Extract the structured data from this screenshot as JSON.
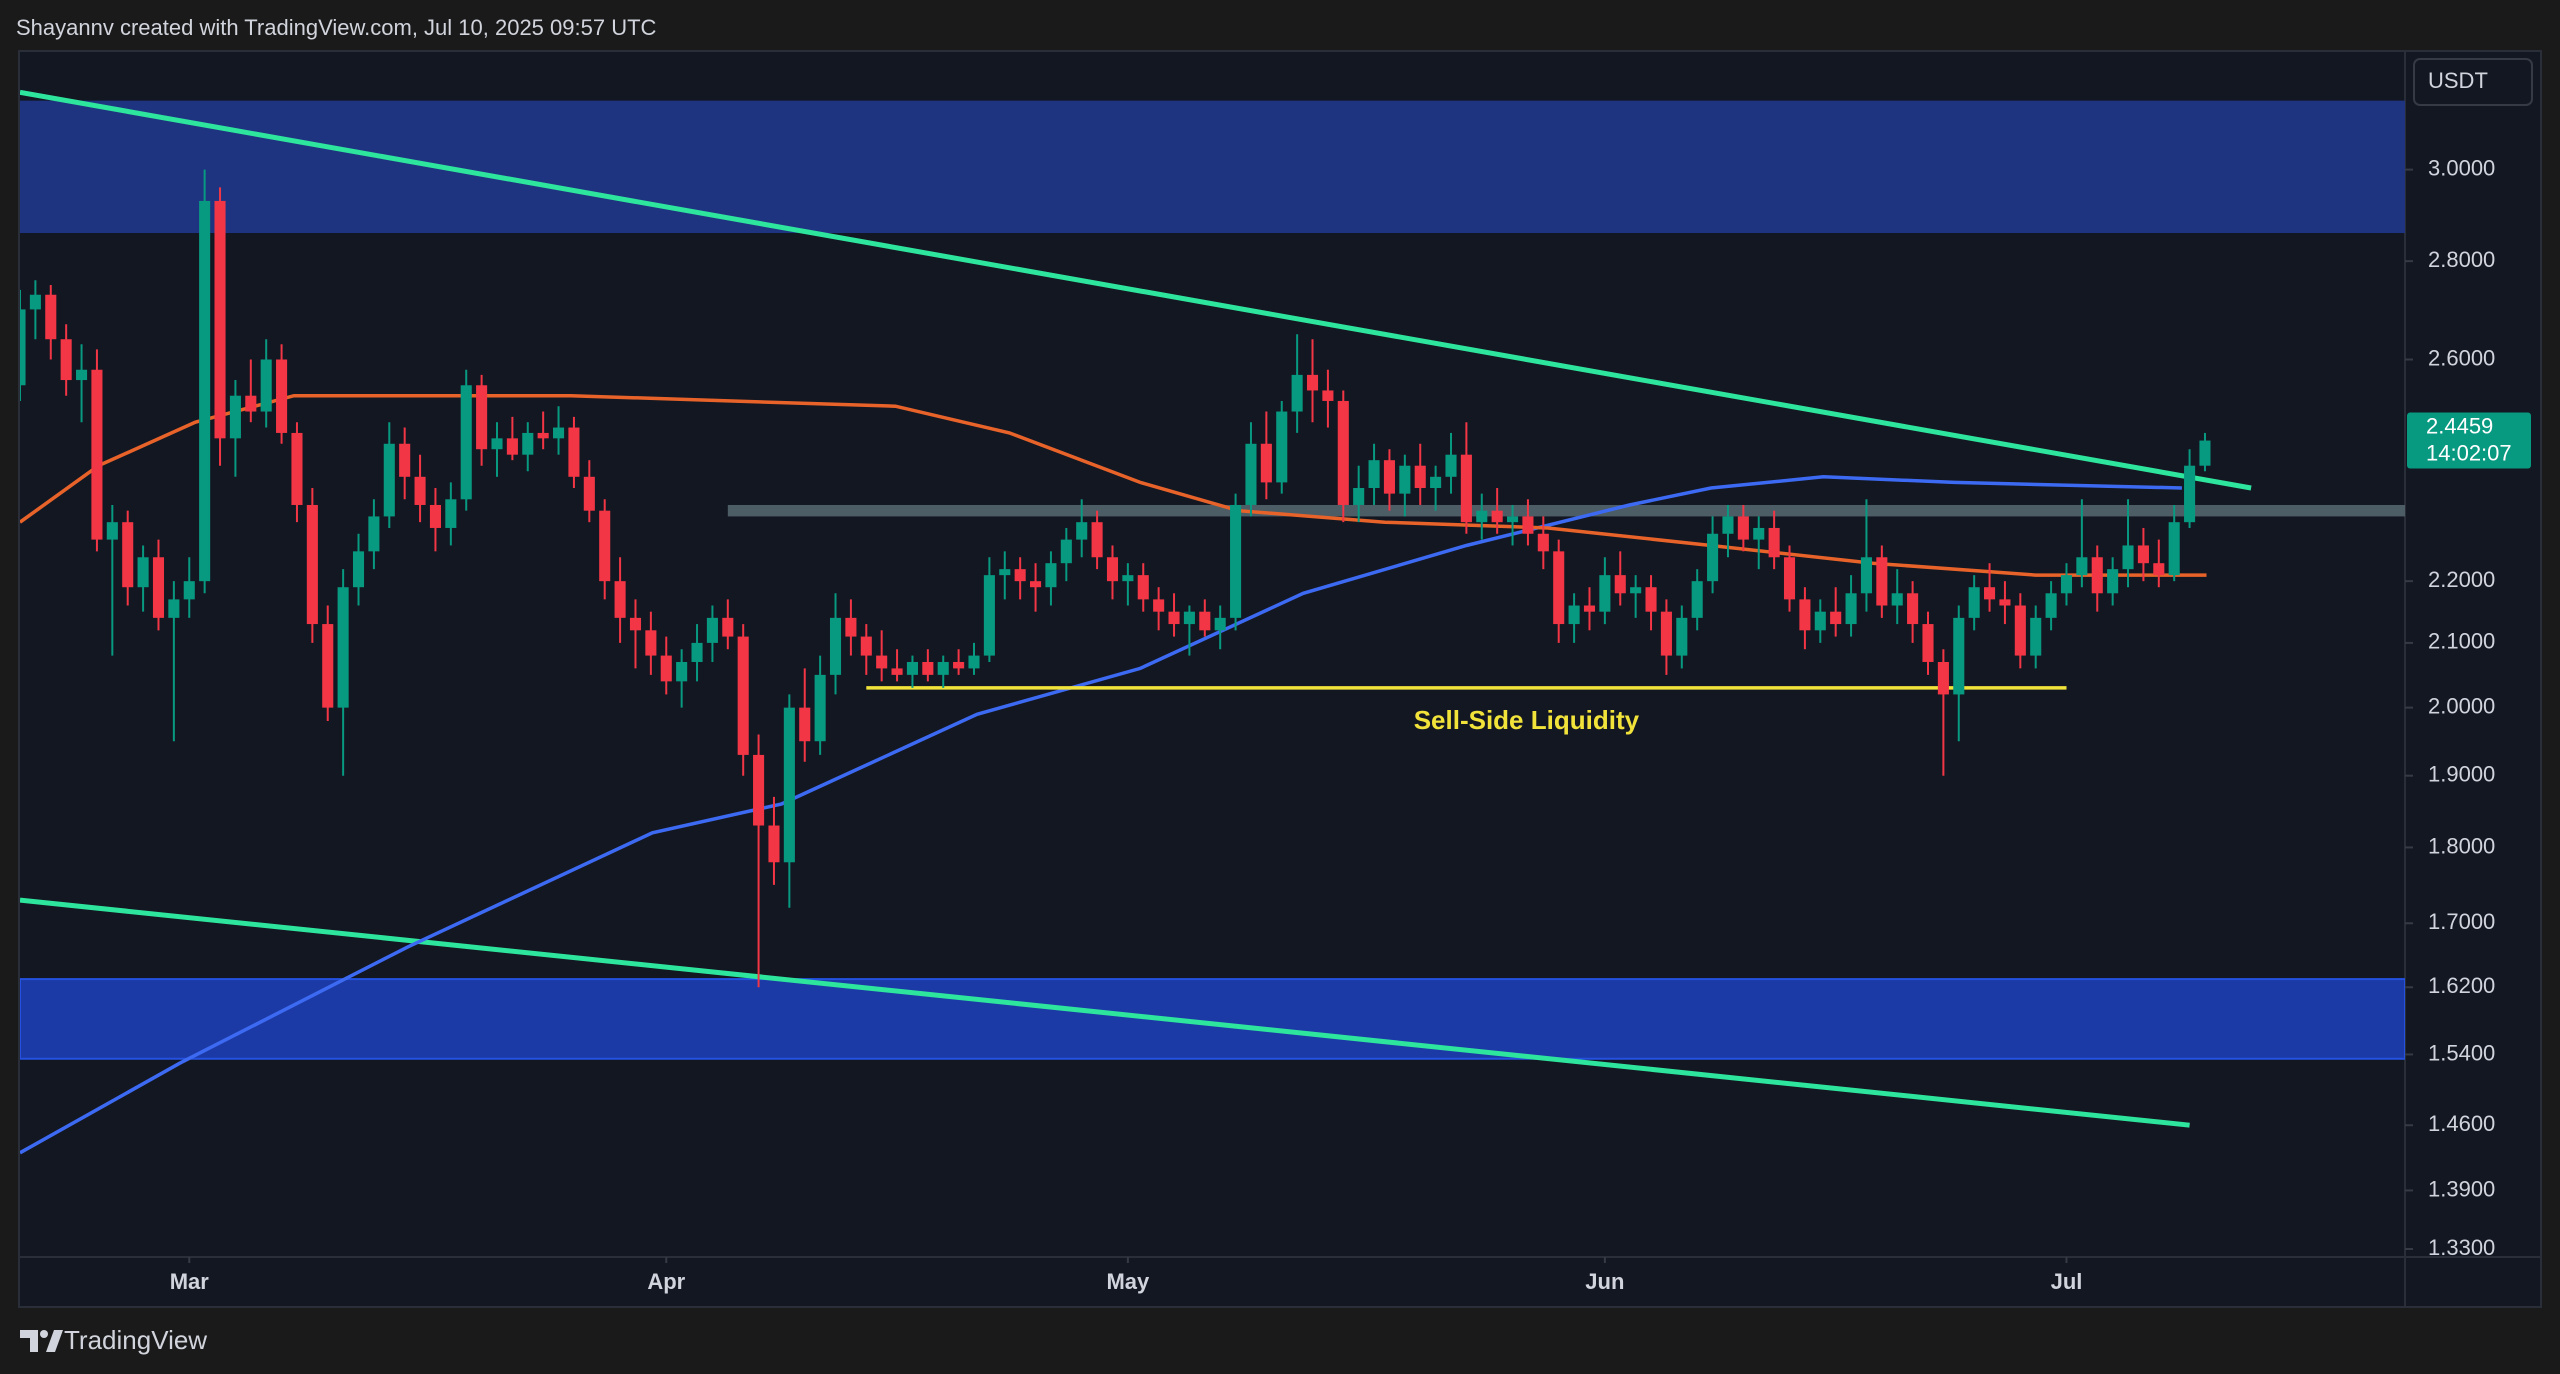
{
  "header": {
    "attribution": "Shayannv created with TradingView.com, Jul 10, 2025 09:57 UTC",
    "currency": "USDT"
  },
  "footer": {
    "brand": "TradingView"
  },
  "chart_data": {
    "type": "candlestick",
    "log_scale": true,
    "xlim": [
      0,
      155
    ],
    "xticks": [
      {
        "value": 11,
        "label": "Mar"
      },
      {
        "value": 42,
        "label": "Apr"
      },
      {
        "value": 72,
        "label": "May"
      },
      {
        "value": 103,
        "label": "Jun"
      },
      {
        "value": 133,
        "label": "Jul"
      }
    ],
    "ylim": [
      1.322,
      3.278
    ],
    "yticks": [
      {
        "value": 3,
        "label": "3.0000"
      },
      {
        "value": 2.8,
        "label": "2.8000"
      },
      {
        "value": 2.6,
        "label": "2.6000"
      },
      {
        "value": 2.2,
        "label": "2.2000"
      },
      {
        "value": 2.1,
        "label": "2.1000"
      },
      {
        "value": 2,
        "label": "2.0000"
      },
      {
        "value": 1.9,
        "label": "1.9000"
      },
      {
        "value": 1.8,
        "label": "1.8000"
      },
      {
        "value": 1.7,
        "label": "1.7000"
      },
      {
        "value": 1.62,
        "label": "1.6200"
      },
      {
        "value": 1.54,
        "label": "1.5400"
      },
      {
        "value": 1.46,
        "label": "1.4600"
      },
      {
        "value": 1.39,
        "label": "1.3900"
      },
      {
        "value": 1.33,
        "label": "1.3300"
      }
    ],
    "up_color": "#089981",
    "down_color": "#f23645",
    "candles": [
      [
        2.55,
        2.74,
        2.52,
        2.7
      ],
      [
        2.7,
        2.76,
        2.64,
        2.73
      ],
      [
        2.73,
        2.75,
        2.6,
        2.64
      ],
      [
        2.64,
        2.67,
        2.53,
        2.56
      ],
      [
        2.56,
        2.63,
        2.48,
        2.58
      ],
      [
        2.58,
        2.62,
        2.25,
        2.27
      ],
      [
        2.27,
        2.33,
        2.08,
        2.3
      ],
      [
        2.3,
        2.32,
        2.16,
        2.19
      ],
      [
        2.19,
        2.26,
        2.15,
        2.24
      ],
      [
        2.24,
        2.27,
        2.12,
        2.14
      ],
      [
        2.14,
        2.2,
        1.95,
        2.17
      ],
      [
        2.17,
        2.24,
        2.14,
        2.2
      ],
      [
        2.2,
        3.0,
        2.18,
        2.93
      ],
      [
        2.93,
        2.96,
        2.4,
        2.45
      ],
      [
        2.45,
        2.56,
        2.38,
        2.53
      ],
      [
        2.53,
        2.6,
        2.48,
        2.5
      ],
      [
        2.5,
        2.64,
        2.47,
        2.6
      ],
      [
        2.6,
        2.63,
        2.44,
        2.46
      ],
      [
        2.46,
        2.48,
        2.3,
        2.33
      ],
      [
        2.33,
        2.36,
        2.1,
        2.13
      ],
      [
        2.13,
        2.16,
        1.98,
        2.0
      ],
      [
        2.0,
        2.22,
        1.9,
        2.19
      ],
      [
        2.19,
        2.28,
        2.16,
        2.25
      ],
      [
        2.25,
        2.34,
        2.22,
        2.31
      ],
      [
        2.31,
        2.48,
        2.29,
        2.44
      ],
      [
        2.44,
        2.47,
        2.34,
        2.38
      ],
      [
        2.38,
        2.42,
        2.3,
        2.33
      ],
      [
        2.33,
        2.36,
        2.25,
        2.29
      ],
      [
        2.29,
        2.37,
        2.26,
        2.34
      ],
      [
        2.34,
        2.58,
        2.32,
        2.55
      ],
      [
        2.55,
        2.57,
        2.4,
        2.43
      ],
      [
        2.43,
        2.48,
        2.38,
        2.45
      ],
      [
        2.45,
        2.49,
        2.41,
        2.42
      ],
      [
        2.42,
        2.48,
        2.39,
        2.46
      ],
      [
        2.46,
        2.5,
        2.43,
        2.45
      ],
      [
        2.45,
        2.51,
        2.42,
        2.47
      ],
      [
        2.47,
        2.49,
        2.36,
        2.38
      ],
      [
        2.38,
        2.41,
        2.3,
        2.32
      ],
      [
        2.32,
        2.34,
        2.17,
        2.2
      ],
      [
        2.2,
        2.24,
        2.1,
        2.14
      ],
      [
        2.14,
        2.17,
        2.06,
        2.12
      ],
      [
        2.12,
        2.15,
        2.05,
        2.08
      ],
      [
        2.08,
        2.11,
        2.02,
        2.04
      ],
      [
        2.04,
        2.09,
        2.0,
        2.07
      ],
      [
        2.07,
        2.13,
        2.04,
        2.1
      ],
      [
        2.1,
        2.16,
        2.07,
        2.14
      ],
      [
        2.14,
        2.17,
        2.09,
        2.11
      ],
      [
        2.11,
        2.13,
        1.9,
        1.93
      ],
      [
        1.93,
        1.96,
        1.62,
        1.83
      ],
      [
        1.83,
        1.87,
        1.75,
        1.78
      ],
      [
        1.78,
        2.02,
        1.72,
        2.0
      ],
      [
        2.0,
        2.06,
        1.92,
        1.95
      ],
      [
        1.95,
        2.08,
        1.93,
        2.05
      ],
      [
        2.05,
        2.18,
        2.02,
        2.14
      ],
      [
        2.14,
        2.17,
        2.08,
        2.11
      ],
      [
        2.11,
        2.13,
        2.05,
        2.08
      ],
      [
        2.08,
        2.12,
        2.04,
        2.06
      ],
      [
        2.06,
        2.09,
        2.04,
        2.05
      ],
      [
        2.05,
        2.08,
        2.03,
        2.07
      ],
      [
        2.07,
        2.09,
        2.04,
        2.05
      ],
      [
        2.05,
        2.08,
        2.03,
        2.07
      ],
      [
        2.07,
        2.09,
        2.05,
        2.06
      ],
      [
        2.06,
        2.1,
        2.05,
        2.08
      ],
      [
        2.08,
        2.24,
        2.07,
        2.21
      ],
      [
        2.21,
        2.25,
        2.17,
        2.22
      ],
      [
        2.22,
        2.24,
        2.17,
        2.2
      ],
      [
        2.2,
        2.23,
        2.15,
        2.19
      ],
      [
        2.19,
        2.25,
        2.16,
        2.23
      ],
      [
        2.23,
        2.29,
        2.2,
        2.27
      ],
      [
        2.27,
        2.34,
        2.24,
        2.3
      ],
      [
        2.3,
        2.32,
        2.22,
        2.24
      ],
      [
        2.24,
        2.26,
        2.17,
        2.2
      ],
      [
        2.2,
        2.23,
        2.16,
        2.21
      ],
      [
        2.21,
        2.23,
        2.15,
        2.17
      ],
      [
        2.17,
        2.19,
        2.12,
        2.15
      ],
      [
        2.15,
        2.18,
        2.11,
        2.13
      ],
      [
        2.13,
        2.16,
        2.08,
        2.15
      ],
      [
        2.15,
        2.17,
        2.11,
        2.12
      ],
      [
        2.12,
        2.16,
        2.09,
        2.14
      ],
      [
        2.14,
        2.35,
        2.12,
        2.33
      ],
      [
        2.33,
        2.48,
        2.31,
        2.44
      ],
      [
        2.44,
        2.5,
        2.34,
        2.37
      ],
      [
        2.37,
        2.52,
        2.35,
        2.5
      ],
      [
        2.5,
        2.65,
        2.46,
        2.57
      ],
      [
        2.57,
        2.64,
        2.48,
        2.54
      ],
      [
        2.54,
        2.58,
        2.47,
        2.52
      ],
      [
        2.52,
        2.54,
        2.3,
        2.33
      ],
      [
        2.33,
        2.4,
        2.3,
        2.36
      ],
      [
        2.36,
        2.44,
        2.33,
        2.41
      ],
      [
        2.41,
        2.43,
        2.32,
        2.35
      ],
      [
        2.35,
        2.42,
        2.31,
        2.4
      ],
      [
        2.4,
        2.44,
        2.33,
        2.36
      ],
      [
        2.36,
        2.4,
        2.32,
        2.38
      ],
      [
        2.38,
        2.46,
        2.35,
        2.42
      ],
      [
        2.42,
        2.48,
        2.28,
        2.3
      ],
      [
        2.3,
        2.35,
        2.27,
        2.32
      ],
      [
        2.32,
        2.36,
        2.28,
        2.3
      ],
      [
        2.3,
        2.33,
        2.26,
        2.31
      ],
      [
        2.31,
        2.34,
        2.26,
        2.28
      ],
      [
        2.28,
        2.31,
        2.22,
        2.25
      ],
      [
        2.25,
        2.27,
        2.1,
        2.13
      ],
      [
        2.13,
        2.18,
        2.1,
        2.16
      ],
      [
        2.16,
        2.19,
        2.12,
        2.15
      ],
      [
        2.15,
        2.24,
        2.13,
        2.21
      ],
      [
        2.21,
        2.25,
        2.16,
        2.18
      ],
      [
        2.18,
        2.21,
        2.14,
        2.19
      ],
      [
        2.19,
        2.21,
        2.12,
        2.15
      ],
      [
        2.15,
        2.17,
        2.05,
        2.08
      ],
      [
        2.08,
        2.16,
        2.06,
        2.14
      ],
      [
        2.14,
        2.22,
        2.12,
        2.2
      ],
      [
        2.2,
        2.31,
        2.18,
        2.28
      ],
      [
        2.28,
        2.33,
        2.24,
        2.31
      ],
      [
        2.31,
        2.33,
        2.25,
        2.27
      ],
      [
        2.27,
        2.31,
        2.22,
        2.29
      ],
      [
        2.29,
        2.32,
        2.22,
        2.24
      ],
      [
        2.24,
        2.26,
        2.15,
        2.17
      ],
      [
        2.17,
        2.19,
        2.09,
        2.12
      ],
      [
        2.12,
        2.17,
        2.1,
        2.15
      ],
      [
        2.15,
        2.19,
        2.11,
        2.13
      ],
      [
        2.13,
        2.21,
        2.11,
        2.18
      ],
      [
        2.18,
        2.34,
        2.15,
        2.24
      ],
      [
        2.24,
        2.26,
        2.14,
        2.16
      ],
      [
        2.16,
        2.22,
        2.13,
        2.18
      ],
      [
        2.18,
        2.2,
        2.1,
        2.13
      ],
      [
        2.13,
        2.15,
        2.05,
        2.07
      ],
      [
        2.07,
        2.09,
        1.9,
        2.02
      ],
      [
        2.02,
        2.16,
        1.95,
        2.14
      ],
      [
        2.14,
        2.21,
        2.12,
        2.19
      ],
      [
        2.19,
        2.23,
        2.15,
        2.17
      ],
      [
        2.17,
        2.2,
        2.13,
        2.16
      ],
      [
        2.16,
        2.18,
        2.06,
        2.08
      ],
      [
        2.08,
        2.16,
        2.06,
        2.14
      ],
      [
        2.14,
        2.2,
        2.12,
        2.18
      ],
      [
        2.18,
        2.23,
        2.16,
        2.21
      ],
      [
        2.21,
        2.34,
        2.19,
        2.24
      ],
      [
        2.24,
        2.26,
        2.15,
        2.18
      ],
      [
        2.18,
        2.24,
        2.16,
        2.22
      ],
      [
        2.22,
        2.34,
        2.19,
        2.26
      ],
      [
        2.26,
        2.29,
        2.2,
        2.23
      ],
      [
        2.23,
        2.27,
        2.19,
        2.21
      ],
      [
        2.21,
        2.33,
        2.2,
        2.3
      ],
      [
        2.3,
        2.43,
        2.29,
        2.4
      ],
      [
        2.4,
        2.46,
        2.39,
        2.4459
      ]
    ],
    "last_price": {
      "value": 2.4459,
      "countdown": "14:02:07",
      "color": "#089981"
    },
    "zones": [
      {
        "color": "#1f3480",
        "x": [
          0,
          155
        ],
        "range": [
          2.86,
          3.16
        ]
      },
      {
        "color": "#1c3aa6",
        "x": [
          0,
          155
        ],
        "range": [
          1.535,
          1.63
        ]
      },
      {
        "color": "#4d5d66",
        "x": [
          46,
          155
        ],
        "range": [
          2.31,
          2.33
        ]
      }
    ],
    "lines": [
      {
        "color": "#2ee59d",
        "x": [
          0,
          145
        ],
        "values": [
          3.18,
          2.36
        ]
      },
      {
        "color": "#2ee59d",
        "x": [
          0,
          141
        ],
        "values": [
          1.73,
          1.46
        ]
      },
      {
        "color": "#3d6af2",
        "x": [
          0,
          10.4,
          25.2,
          41.1,
          49.5,
          62.2,
          72.8,
          83.4,
          94,
          104.6,
          109.9,
          117.2,
          125.7,
          140.5
        ],
        "values": [
          1.43,
          1.53,
          1.67,
          1.82,
          1.86,
          1.99,
          2.06,
          2.18,
          2.26,
          2.33,
          2.36,
          2.38,
          2.37,
          2.36
        ]
      },
      {
        "color": "#e8632a",
        "x": [
          0,
          5.1,
          11.4,
          17.8,
          25.2,
          35.8,
          46.3,
          56.9,
          64.3,
          72.8,
          79.2,
          88.7,
          99.3,
          109.9,
          120.4,
          131,
          142.1
        ],
        "values": [
          2.3,
          2.4,
          2.48,
          2.53,
          2.53,
          2.53,
          2.52,
          2.51,
          2.46,
          2.37,
          2.32,
          2.3,
          2.29,
          2.26,
          2.23,
          2.21,
          2.21
        ]
      },
      {
        "color": "#f2e33b",
        "x": [
          55,
          133
        ],
        "values": [
          2.03,
          2.03
        ],
        "label": "Sell-Side Liquidity"
      }
    ]
  }
}
